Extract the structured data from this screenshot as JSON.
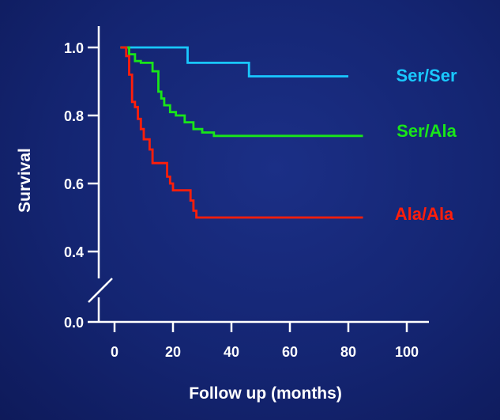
{
  "chart_data": {
    "type": "line",
    "line_style": "step",
    "xlabel": "Follow up (months)",
    "ylabel": "Survival",
    "xlim": [
      -5,
      108
    ],
    "ylim": [
      0.0,
      1.05
    ],
    "axis_break": true,
    "x_ticks": [
      0,
      20,
      40,
      60,
      80,
      100
    ],
    "y_ticks": [
      0.0,
      0.4,
      0.6,
      0.8,
      1.0
    ],
    "x_tick_labels": [
      "0",
      "20",
      "40",
      "60",
      "80",
      "100"
    ],
    "y_tick_labels": [
      "0.0",
      "0.4",
      "0.6",
      "0.8",
      "1.0"
    ],
    "grid": false,
    "legend_placement": "right, inline labels",
    "series": [
      {
        "name": "Ser/Ser",
        "color": "#19c8ff",
        "x": [
          2,
          25,
          46,
          80
        ],
        "y": [
          1.0,
          0.955,
          0.915,
          0.915
        ]
      },
      {
        "name": "Ser/Ala",
        "color": "#19e619",
        "x": [
          2,
          5,
          7,
          9,
          13,
          15,
          16,
          17,
          19,
          21,
          24,
          27,
          30,
          34,
          85
        ],
        "y": [
          1.0,
          0.98,
          0.96,
          0.955,
          0.93,
          0.87,
          0.85,
          0.83,
          0.81,
          0.8,
          0.78,
          0.76,
          0.75,
          0.74,
          0.74
        ]
      },
      {
        "name": "Ala/Ala",
        "color": "#ff1e0a",
        "x": [
          2,
          4,
          5,
          6,
          7,
          8,
          9,
          10,
          12,
          13,
          18,
          19,
          20,
          26,
          27,
          28,
          85
        ],
        "y": [
          1.0,
          0.975,
          0.92,
          0.84,
          0.825,
          0.79,
          0.76,
          0.73,
          0.7,
          0.66,
          0.62,
          0.6,
          0.58,
          0.55,
          0.52,
          0.5,
          0.5
        ]
      }
    ]
  }
}
